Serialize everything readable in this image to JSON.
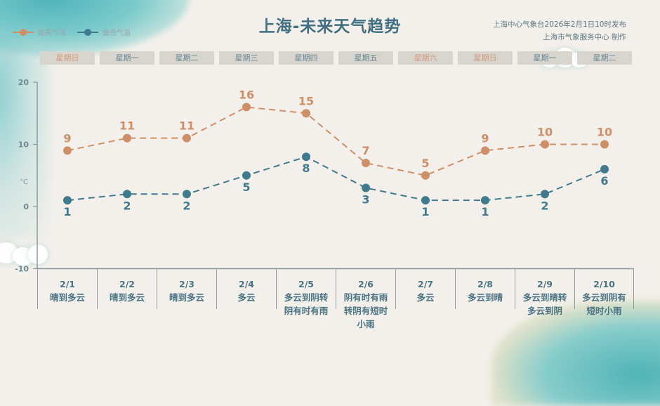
{
  "title": "上海-未来天气趋势",
  "publisher": {
    "line1": "上海中心气象台2026年2月1日10时发布",
    "line2": "上海市气象服务中心  制作"
  },
  "legend": {
    "high": "最高气温",
    "low": "最低气温"
  },
  "colors": {
    "high": "#cf8f66",
    "low": "#3f7b8d",
    "axis": "#8a9a9f",
    "title": "#3f6f80",
    "weekend_text": "#d39a7a",
    "weekday_text": "#6a8893"
  },
  "weekdays": [
    {
      "label": "星期日",
      "weekend": true
    },
    {
      "label": "星期一",
      "weekend": false
    },
    {
      "label": "星期二",
      "weekend": false
    },
    {
      "label": "星期三",
      "weekend": false
    },
    {
      "label": "星期四",
      "weekend": false
    },
    {
      "label": "星期五",
      "weekend": false
    },
    {
      "label": "星期六",
      "weekend": true
    },
    {
      "label": "星期日",
      "weekend": true
    },
    {
      "label": "星期一",
      "weekend": false
    },
    {
      "label": "星期二",
      "weekend": false
    }
  ],
  "days": [
    {
      "date": "2/1",
      "weather": "晴到多云"
    },
    {
      "date": "2/2",
      "weather": "晴到多云"
    },
    {
      "date": "2/3",
      "weather": "晴到多云"
    },
    {
      "date": "2/4",
      "weather": "多云"
    },
    {
      "date": "2/5",
      "weather": "多云到阴转\n阴有时有雨"
    },
    {
      "date": "2/6",
      "weather": "阴有时有雨\n转阴有短时\n小雨"
    },
    {
      "date": "2/7",
      "weather": "多云"
    },
    {
      "date": "2/8",
      "weather": "多云到晴"
    },
    {
      "date": "2/9",
      "weather": "多云到晴转\n多云到阴"
    },
    {
      "date": "2/10",
      "weather": "多云到阴有\n短时小雨"
    }
  ],
  "chart_data": {
    "type": "line",
    "title": "上海-未来天气趋势",
    "xlabel": "",
    "ylabel": "°C",
    "categories": [
      "2/1",
      "2/2",
      "2/3",
      "2/4",
      "2/5",
      "2/6",
      "2/7",
      "2/8",
      "2/9",
      "2/10"
    ],
    "series": [
      {
        "name": "最高气温",
        "values": [
          9,
          11,
          11,
          16,
          15,
          7,
          5,
          9,
          10,
          10
        ],
        "color": "#cf8f66",
        "style": "dashed"
      },
      {
        "name": "最低气温",
        "values": [
          1,
          2,
          2,
          5,
          8,
          3,
          1,
          1,
          2,
          6
        ],
        "color": "#3f7b8d",
        "style": "dashed"
      }
    ],
    "yticks": [
      20,
      10,
      0,
      -10
    ],
    "ylim": [
      -10,
      20
    ],
    "grid": false,
    "legend_position": "top-left",
    "data_labels": true
  }
}
